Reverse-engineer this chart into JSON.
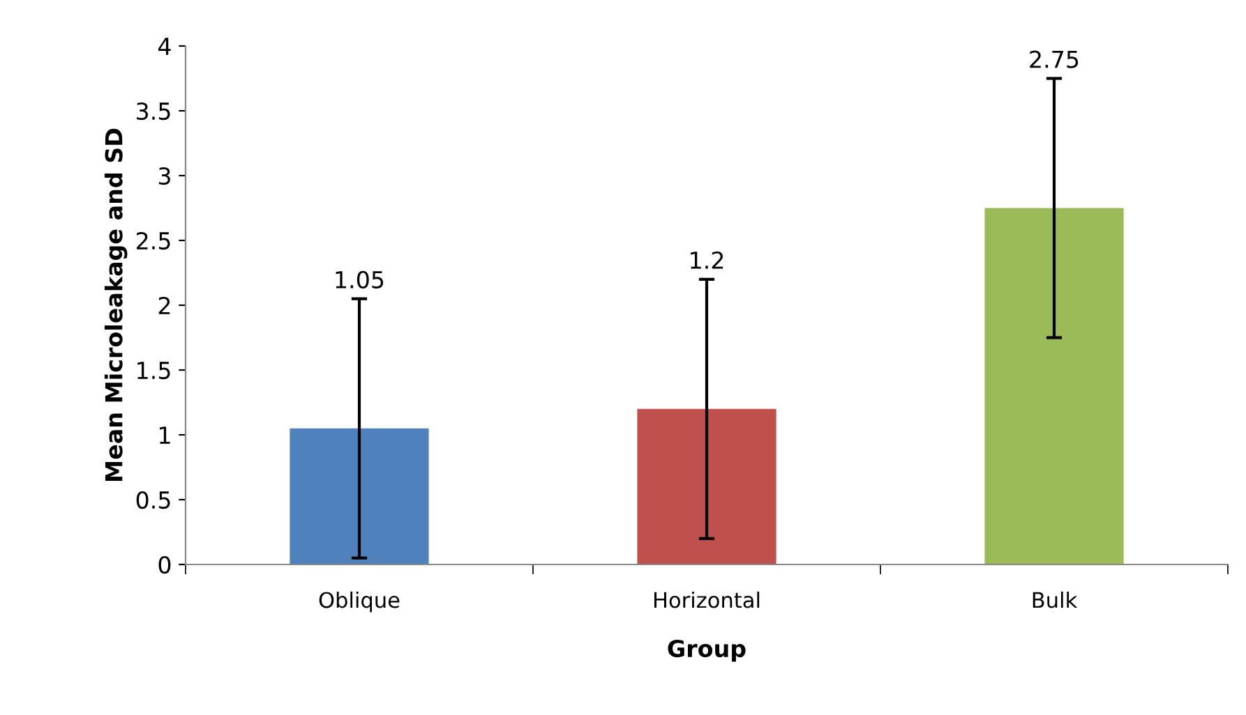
{
  "chart_data": {
    "type": "bar",
    "xlabel": "Group",
    "ylabel": "Mean Microleakage and SD",
    "categories": [
      "Oblique",
      "Horizontal",
      "Bulk"
    ],
    "values": [
      1.05,
      1.2,
      2.75
    ],
    "colors": [
      "#4f81bd",
      "#c0504d",
      "#9bbb59"
    ],
    "errors": [
      1.0,
      1.0,
      1.0
    ],
    "ylim": [
      0,
      4
    ],
    "yticks": [
      0,
      0.5,
      1,
      1.5,
      2,
      2.5,
      3,
      3.5,
      4
    ],
    "annotations": [
      {
        "text": "1.05",
        "x": "Oblique",
        "y": 2.05
      },
      {
        "text": "1.2",
        "x": "Horizontal",
        "y": 2.2
      },
      {
        "text": "2.75",
        "x": "Bulk",
        "y": 3.75
      }
    ],
    "grid": false
  }
}
